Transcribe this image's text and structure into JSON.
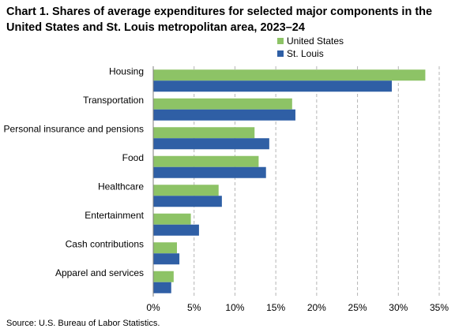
{
  "title": "Chart 1. Shares of average expenditures for selected major components in the United States and St. Louis metropolitan area, 2023–24",
  "source": "Source: U.S. Bureau of Labor Statistics.",
  "chart_data": {
    "type": "bar",
    "orientation": "horizontal",
    "categories": [
      "Housing",
      "Transportation",
      "Personal insurance and pensions",
      "Food",
      "Healthcare",
      "Entertainment",
      "Cash contributions",
      "Apparel and services"
    ],
    "series": [
      {
        "name": "United States",
        "color": "#8dc366",
        "values": [
          33.3,
          17.0,
          12.4,
          12.9,
          8.0,
          4.6,
          2.9,
          2.5
        ]
      },
      {
        "name": "St. Louis",
        "color": "#2f5fa5",
        "values": [
          29.2,
          17.4,
          14.2,
          13.8,
          8.4,
          5.6,
          3.2,
          2.2
        ]
      }
    ],
    "xlim": [
      0,
      35
    ],
    "xticks": [
      "0%",
      "5%",
      "10%",
      "15%",
      "20%",
      "25%",
      "30%",
      "35%"
    ],
    "grid": true,
    "legend_position": "top-right"
  }
}
